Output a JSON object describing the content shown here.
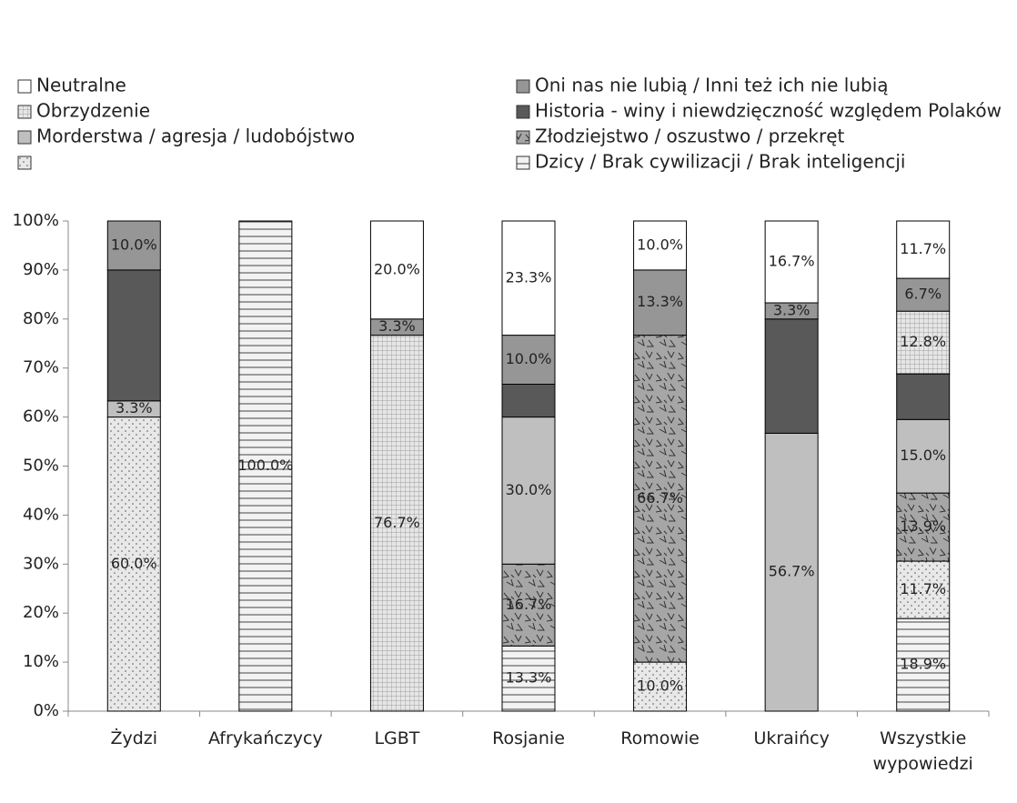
{
  "chart_data": {
    "type": "stacked_bar",
    "categories": [
      "Żydzi",
      "Afrykańczycy",
      "LGBT",
      "Rosjanie",
      "Romowie",
      "Ukraińcy",
      "Wszystkie wypowiedzi"
    ],
    "series": [
      {
        "name": "Dzicy / Brak cywilizacji / Brak inteligencji",
        "color": "#eeeeee",
        "pattern": "hlines",
        "values": [
          0,
          100,
          0,
          13.3,
          0,
          0,
          18.9
        ],
        "value_labels": [
          null,
          "100.0%",
          null,
          "13.3%",
          null,
          null,
          "18.9%"
        ]
      },
      {
        "name": null,
        "color": "#e6e6e6",
        "pattern": "dots",
        "values": [
          60,
          0,
          0,
          0,
          10,
          0,
          11.7
        ],
        "value_labels": [
          "60.0%",
          null,
          null,
          null,
          "10.0%",
          null,
          "11.7%"
        ]
      },
      {
        "name": "Złodziejstwo / oszustwo / przekręt",
        "color": "#a6a6a6",
        "pattern": "triangles",
        "values": [
          0,
          0,
          0,
          16.7,
          66.7,
          0,
          13.9
        ],
        "value_labels": [
          null,
          null,
          null,
          "16.7%",
          "66.7%",
          null,
          "13.9%"
        ]
      },
      {
        "name": "Morderstwa / agresja / ludobójstwo",
        "color": "#bfbfbf",
        "pattern": "solid",
        "values": [
          3.3,
          0,
          0,
          30,
          0,
          56.7,
          15
        ],
        "value_labels": [
          "3.3%",
          null,
          null,
          "30.0%",
          null,
          "56.7%",
          "15.0%"
        ]
      },
      {
        "name": "Historia - winy i niewdzięczność względem Polaków",
        "color": "#595959",
        "pattern": "solid",
        "values": [
          26.7,
          0,
          0,
          6.7,
          0,
          23.3,
          9.3
        ],
        "value_labels": [
          null,
          null,
          null,
          null,
          null,
          null,
          null
        ]
      },
      {
        "name": "Obrzydzenie",
        "color": "#e0e0e0",
        "pattern": "grid",
        "values": [
          0,
          0,
          76.7,
          0,
          0,
          0,
          12.8
        ],
        "value_labels": [
          null,
          null,
          "76.7%",
          null,
          null,
          null,
          "12.8%"
        ]
      },
      {
        "name": "Oni nas nie lubią / Inni też ich nie lubią",
        "color": "#969696",
        "pattern": "solid",
        "values": [
          10,
          0,
          3.3,
          10,
          13.3,
          3.3,
          6.7
        ],
        "value_labels": [
          "10.0%",
          null,
          "3.3%",
          "10.0%",
          "13.3%",
          "3.3%",
          "6.7%"
        ]
      },
      {
        "name": "Neutralne",
        "color": "#ffffff",
        "pattern": "solid",
        "values": [
          0,
          0,
          20,
          23.3,
          10,
          16.7,
          11.7
        ],
        "value_labels": [
          null,
          null,
          "20.0%",
          "23.3%",
          "10.0%",
          "16.7%",
          "11.7%"
        ]
      }
    ],
    "ylim": [
      0,
      100
    ],
    "yticks": [
      {
        "value": 0,
        "label": "0%"
      },
      {
        "value": 10,
        "label": "10%"
      },
      {
        "value": 20,
        "label": "20%"
      },
      {
        "value": 30,
        "label": "30%"
      },
      {
        "value": 40,
        "label": "40%"
      },
      {
        "value": 50,
        "label": "50%"
      },
      {
        "value": 60,
        "label": "60%"
      },
      {
        "value": 70,
        "label": "70%"
      },
      {
        "value": 80,
        "label": "80%"
      },
      {
        "value": 90,
        "label": "90%"
      },
      {
        "value": 100,
        "label": "100%"
      }
    ],
    "legend": "top"
  }
}
